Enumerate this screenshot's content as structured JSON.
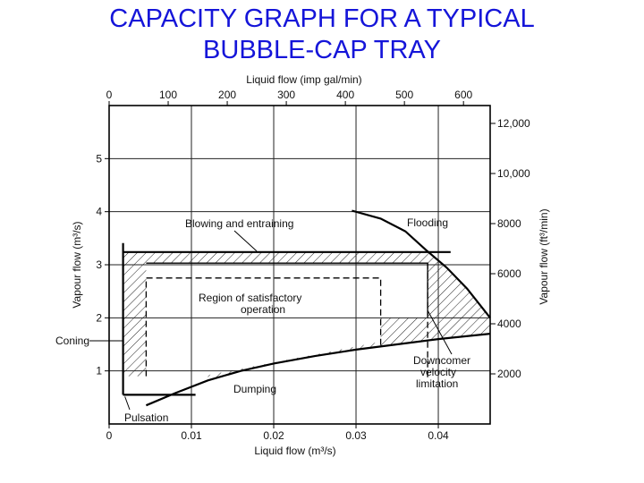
{
  "title": {
    "line1": "CAPACITY GRAPH FOR A TYPICAL",
    "line2": "BUBBLE-CAP TRAY"
  },
  "chart_data": {
    "type": "area",
    "bottom_axis": {
      "label": "Liquid flow (m³/s)",
      "ticks": [
        "0",
        "0.01",
        "0.02",
        "0.03",
        "0.04"
      ],
      "range": [
        0,
        0.0463
      ]
    },
    "top_axis": {
      "label": "Liquid flow (imp gal/min)",
      "ticks": [
        "0",
        "100",
        "200",
        "300",
        "400",
        "500",
        "600"
      ]
    },
    "left_axis": {
      "label": "Vapour flow (m³/s)",
      "ticks": [
        "1",
        "2",
        "3",
        "4",
        "5"
      ],
      "range": [
        0,
        6
      ]
    },
    "right_axis": {
      "label": "Vapour flow (ft³/min)",
      "ticks": [
        "2000",
        "4000",
        "6000",
        "8000",
        "10,000",
        "12,000"
      ]
    },
    "grid": true,
    "curves": {
      "flooding": {
        "x": [
          0.0295,
          0.033,
          0.036,
          0.0385,
          0.041,
          0.0435,
          0.0463
        ],
        "y": [
          4.02,
          3.87,
          3.63,
          3.28,
          2.95,
          2.55,
          2.0
        ]
      },
      "dumping": {
        "x": [
          0.0045,
          0.008,
          0.012,
          0.016,
          0.02,
          0.025,
          0.03,
          0.035,
          0.04,
          0.0463
        ],
        "y": [
          0.35,
          0.58,
          0.82,
          1.0,
          1.14,
          1.28,
          1.4,
          1.5,
          1.6,
          1.7
        ]
      },
      "blowing_and_entraining": {
        "x": [
          0.0017,
          0.0415
        ],
        "y": [
          3.24,
          3.24
        ]
      },
      "coning": {
        "x": [
          0.0017,
          0.0017
        ],
        "y": [
          0.55,
          3.41
        ]
      },
      "pulsation": {
        "x": [
          0.0017,
          0.0105
        ],
        "y": [
          0.55,
          0.55
        ]
      },
      "downcomer_velocity_limitation": {
        "x": [
          0.0387,
          0.0387
        ],
        "y": [
          0.88,
          3.03
        ]
      },
      "satisfactory_region_boundary": {
        "x": [
          0.0045,
          0.0045,
          0.033,
          0.033
        ],
        "y": [
          0.9,
          2.75,
          2.75,
          1.45
        ]
      },
      "satisfactory_region_inner_edge": {
        "x": [
          0.0045,
          0.0387,
          0.0387
        ],
        "y": [
          3.03,
          3.03,
          2.05
        ]
      }
    },
    "annotations": {
      "blowing": "Blowing and entraining",
      "flooding": "Flooding",
      "region_line1": "Region of satisfactory",
      "region_line2": "operation",
      "coning": "Coning",
      "dumping": "Dumping",
      "pulsation": "Pulsation",
      "downcomer_line1": "Downcomer",
      "downcomer_line2": "velocity",
      "downcomer_line3": "limitation"
    }
  }
}
